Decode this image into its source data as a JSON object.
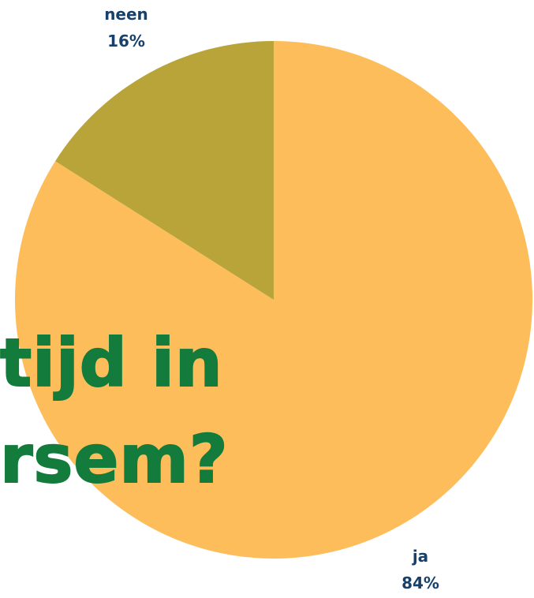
{
  "chart_data": {
    "type": "pie",
    "categories": [
      "ja",
      "neen"
    ],
    "values": [
      84,
      16
    ],
    "labels": [
      "84%",
      "16%"
    ],
    "colors": [
      "#FDBD5A",
      "#B9A43A"
    ],
    "start_angle_deg": 0,
    "direction": "clockwise"
  },
  "background_text": {
    "line1": "tijd in",
    "line2": "rsem?",
    "color": "#137B3B"
  },
  "label_color": "#17406A"
}
